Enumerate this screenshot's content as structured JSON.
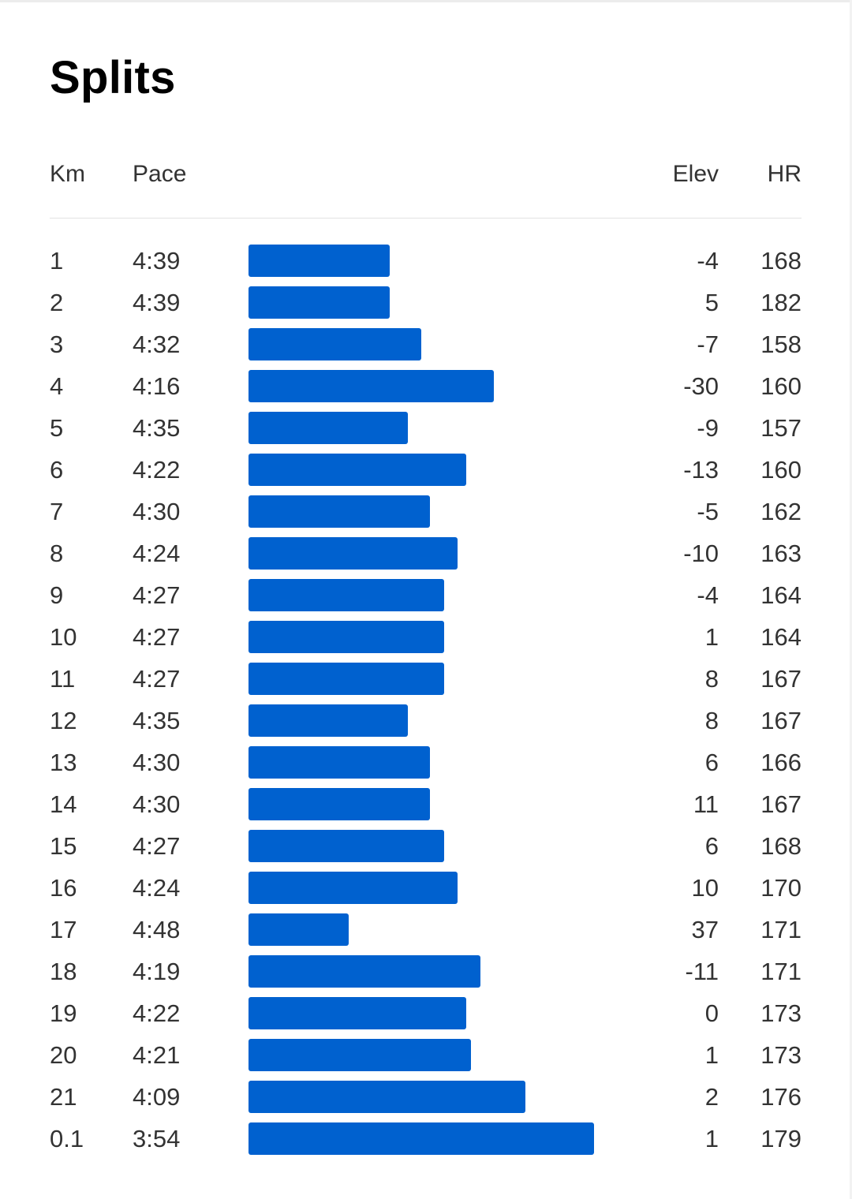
{
  "page": {
    "title": "Splits"
  },
  "table": {
    "headers": {
      "km": "Km",
      "pace": "Pace",
      "elev": "Elev",
      "hr": "HR"
    },
    "bar_color": "#0061cf",
    "rows": [
      {
        "km": "1",
        "pace": "4:39",
        "elev": "-4",
        "hr": "168",
        "pace_sec": 279
      },
      {
        "km": "2",
        "pace": "4:39",
        "elev": "5",
        "hr": "182",
        "pace_sec": 279
      },
      {
        "km": "3",
        "pace": "4:32",
        "elev": "-7",
        "hr": "158",
        "pace_sec": 272
      },
      {
        "km": "4",
        "pace": "4:16",
        "elev": "-30",
        "hr": "160",
        "pace_sec": 256
      },
      {
        "km": "5",
        "pace": "4:35",
        "elev": "-9",
        "hr": "157",
        "pace_sec": 275
      },
      {
        "km": "6",
        "pace": "4:22",
        "elev": "-13",
        "hr": "160",
        "pace_sec": 262
      },
      {
        "km": "7",
        "pace": "4:30",
        "elev": "-5",
        "hr": "162",
        "pace_sec": 270
      },
      {
        "km": "8",
        "pace": "4:24",
        "elev": "-10",
        "hr": "163",
        "pace_sec": 264
      },
      {
        "km": "9",
        "pace": "4:27",
        "elev": "-4",
        "hr": "164",
        "pace_sec": 267
      },
      {
        "km": "10",
        "pace": "4:27",
        "elev": "1",
        "hr": "164",
        "pace_sec": 267
      },
      {
        "km": "11",
        "pace": "4:27",
        "elev": "8",
        "hr": "167",
        "pace_sec": 267
      },
      {
        "km": "12",
        "pace": "4:35",
        "elev": "8",
        "hr": "167",
        "pace_sec": 275
      },
      {
        "km": "13",
        "pace": "4:30",
        "elev": "6",
        "hr": "166",
        "pace_sec": 270
      },
      {
        "km": "14",
        "pace": "4:30",
        "elev": "11",
        "hr": "167",
        "pace_sec": 270
      },
      {
        "km": "15",
        "pace": "4:27",
        "elev": "6",
        "hr": "168",
        "pace_sec": 267
      },
      {
        "km": "16",
        "pace": "4:24",
        "elev": "10",
        "hr": "170",
        "pace_sec": 264
      },
      {
        "km": "17",
        "pace": "4:48",
        "elev": "37",
        "hr": "171",
        "pace_sec": 288
      },
      {
        "km": "18",
        "pace": "4:19",
        "elev": "-11",
        "hr": "171",
        "pace_sec": 259
      },
      {
        "km": "19",
        "pace": "4:22",
        "elev": "0",
        "hr": "173",
        "pace_sec": 262
      },
      {
        "km": "20",
        "pace": "4:21",
        "elev": "1",
        "hr": "173",
        "pace_sec": 261
      },
      {
        "km": "21",
        "pace": "4:09",
        "elev": "2",
        "hr": "176",
        "pace_sec": 249
      },
      {
        "km": "0.1",
        "pace": "3:54",
        "elev": "1",
        "hr": "179",
        "pace_sec": 234
      }
    ]
  }
}
